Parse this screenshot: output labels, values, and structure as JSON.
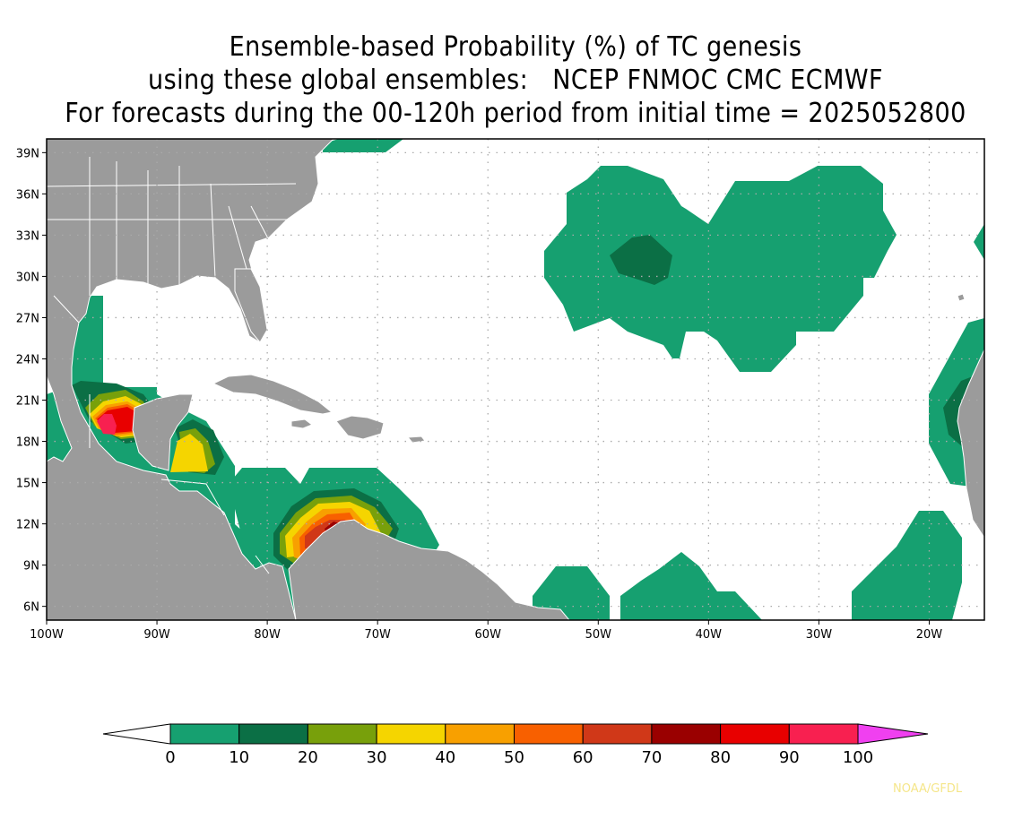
{
  "title": {
    "line1": "Ensemble-based Probability (%) of TC genesis",
    "line2": "using these global ensembles:   NCEP FNMOC CMC ECMWF",
    "line3": "For forecasts during the 00-120h period from initial time = 2025052800"
  },
  "map": {
    "lon_range": [
      -100,
      -15
    ],
    "lat_range": [
      5,
      40
    ],
    "lon_ticks": [
      -100,
      -90,
      -80,
      -70,
      -60,
      -50,
      -40,
      -30,
      -20
    ],
    "lon_labels": [
      "100W",
      "90W",
      "80W",
      "70W",
      "60W",
      "50W",
      "40W",
      "30W",
      "20W"
    ],
    "lat_ticks": [
      6,
      9,
      12,
      15,
      18,
      21,
      24,
      27,
      30,
      33,
      36,
      39
    ],
    "lat_labels": [
      "6N",
      "9N",
      "12N",
      "15N",
      "18N",
      "21N",
      "24N",
      "27N",
      "30N",
      "33N",
      "36N",
      "39N"
    ],
    "grid": "dotted",
    "land_color": "#9b9b9b",
    "border_color": "#ffffff"
  },
  "colorbar": {
    "levels": [
      "0",
      "10",
      "20",
      "30",
      "40",
      "50",
      "60",
      "70",
      "80",
      "90",
      "100"
    ],
    "colors": [
      "#16a070",
      "#0b6f45",
      "#78a00b",
      "#f5d500",
      "#f8a000",
      "#f86000",
      "#d03818",
      "#9a0000",
      "#e80000",
      "#f82050"
    ],
    "under_color": "#ffffff",
    "over_color": "#f040f0"
  },
  "credit": "NOAA/GFDL"
}
